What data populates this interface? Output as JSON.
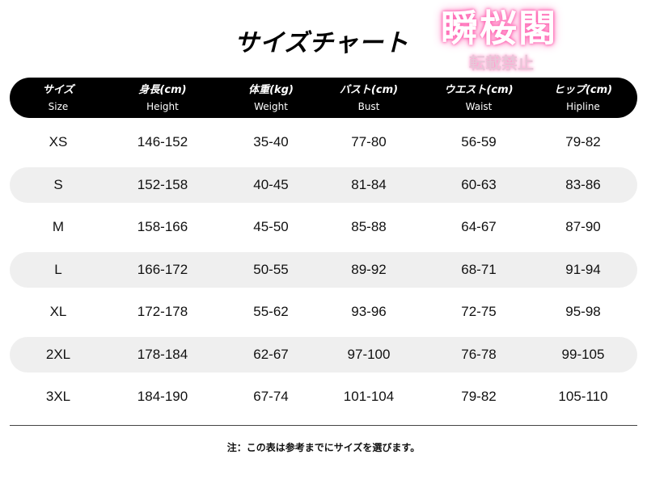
{
  "title": "サイズチャート",
  "watermark": {
    "main": "瞬桜閣",
    "sub": "転載禁止",
    "glow_color": "#ff5fb0"
  },
  "columns": [
    {
      "jp": "サイズ",
      "en": "Size"
    },
    {
      "jp": "身長(cm)",
      "en": "Height"
    },
    {
      "jp": "体重(kg)",
      "en": "Weight"
    },
    {
      "jp": "バスト(cm)",
      "en": "Bust"
    },
    {
      "jp": "ウエスト(cm)",
      "en": "Waist"
    },
    {
      "jp": "ヒップ(cm)",
      "en": "Hipline"
    }
  ],
  "rows": [
    [
      "XS",
      "146-152",
      "35-40",
      "77-80",
      "56-59",
      "79-82"
    ],
    [
      "S",
      "152-158",
      "40-45",
      "81-84",
      "60-63",
      "83-86"
    ],
    [
      "M",
      "158-166",
      "45-50",
      "85-88",
      "64-67",
      "87-90"
    ],
    [
      "L",
      "166-172",
      "50-55",
      "89-92",
      "68-71",
      "91-94"
    ],
    [
      "XL",
      "172-178",
      "55-62",
      "93-96",
      "72-75",
      "95-98"
    ],
    [
      "2XL",
      "178-184",
      "62-67",
      "97-100",
      "76-78",
      "99-105"
    ],
    [
      "3XL",
      "184-190",
      "67-74",
      "101-104",
      "79-82",
      "105-110"
    ]
  ],
  "note": "注：この表は参考までにサイズを選びます。"
}
